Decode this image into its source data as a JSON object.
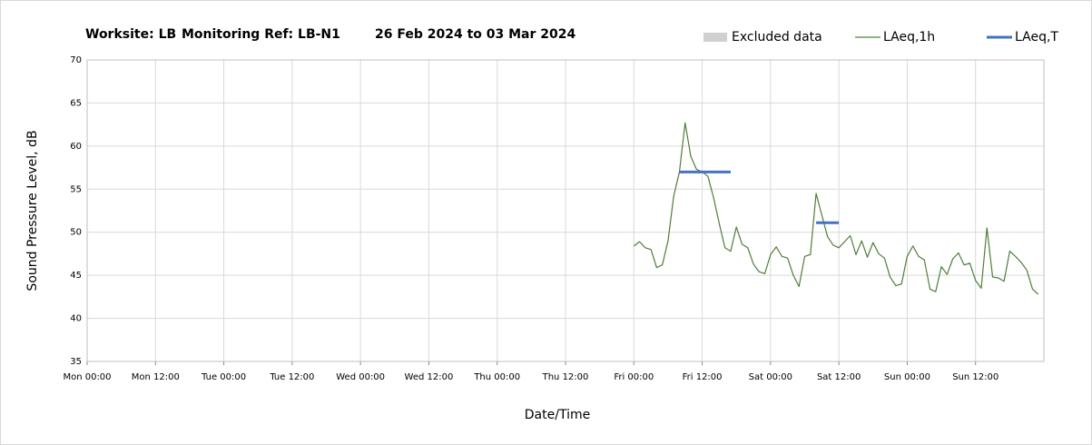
{
  "chart_data": {
    "type": "line",
    "title": [
      "Worksite: LB",
      "Monitoring Ref: LB-N1",
      "26 Feb 2024 to 03 Mar 2024"
    ],
    "xlabel": "Date/Time",
    "ylabel": "Sound Pressure Level, dB",
    "xlim": [
      0,
      168
    ],
    "xticks": [
      {
        "value": 0,
        "label": "Mon 00:00"
      },
      {
        "value": 12,
        "label": "Mon 12:00"
      },
      {
        "value": 24,
        "label": "Tue 00:00"
      },
      {
        "value": 36,
        "label": "Tue 12:00"
      },
      {
        "value": 48,
        "label": "Wed 00:00"
      },
      {
        "value": 60,
        "label": "Wed 12:00"
      },
      {
        "value": 72,
        "label": "Thu 00:00"
      },
      {
        "value": 84,
        "label": "Thu 12:00"
      },
      {
        "value": 96,
        "label": "Fri 00:00"
      },
      {
        "value": 108,
        "label": "Fri 12:00"
      },
      {
        "value": 120,
        "label": "Sat 00:00"
      },
      {
        "value": 132,
        "label": "Sat 12:00"
      },
      {
        "value": 144,
        "label": "Sun 00:00"
      },
      {
        "value": 156,
        "label": "Sun 12:00"
      }
    ],
    "ylim": [
      35,
      70
    ],
    "yticks": [
      35,
      40,
      45,
      50,
      55,
      60,
      65,
      70
    ],
    "grid": true,
    "legend": "top-right",
    "series": [
      {
        "name": "Excluded data",
        "color": "#d0d0d0",
        "style": "area",
        "x": [],
        "values": []
      },
      {
        "name": "LAeq,1h",
        "color": "#4f7d3a",
        "width": 1.2,
        "style": "line",
        "x": [
          96,
          97,
          98,
          99,
          100,
          101,
          102,
          103,
          104,
          105,
          106,
          107,
          108,
          109,
          110,
          111,
          112,
          113,
          114,
          115,
          116,
          117,
          118,
          119,
          120,
          121,
          122,
          123,
          124,
          125,
          126,
          127,
          128,
          129,
          130,
          131,
          132,
          133,
          134,
          135,
          136,
          137,
          138,
          139,
          140,
          141,
          142,
          143,
          144,
          145,
          146,
          147,
          148,
          149,
          150,
          151,
          152,
          153,
          154,
          155,
          156,
          157,
          158,
          159,
          160,
          161,
          162,
          163,
          164,
          165,
          166,
          167
        ],
        "values": [
          48.4,
          48.9,
          48.2,
          48.0,
          45.9,
          46.2,
          49.0,
          54.2,
          57.0,
          62.7,
          58.8,
          57.3,
          57.0,
          56.5,
          54.0,
          51.0,
          48.2,
          47.8,
          50.6,
          48.6,
          48.2,
          46.3,
          45.4,
          45.2,
          47.4,
          48.3,
          47.2,
          47.0,
          45.0,
          43.7,
          47.2,
          47.4,
          54.5,
          52.0,
          49.5,
          48.5,
          48.2,
          48.9,
          49.6,
          47.4,
          49.0,
          47.1,
          48.8,
          47.5,
          47.0,
          44.8,
          43.8,
          44.0,
          47.2,
          48.4,
          47.2,
          46.8,
          43.4,
          43.1,
          46.0,
          45.1,
          46.9,
          47.6,
          46.2,
          46.4,
          44.4,
          43.5,
          50.5,
          44.8,
          44.7,
          44.3,
          47.8,
          47.2,
          46.5,
          45.6,
          43.4,
          42.8
        ]
      },
      {
        "name": "LAeq,T",
        "color": "#4472c4",
        "width": 3,
        "style": "line",
        "x": [
          104,
          113,
          120,
          128,
          132
        ],
        "values": [
          57.0,
          57.0,
          null,
          51.1,
          51.1
        ]
      }
    ]
  }
}
